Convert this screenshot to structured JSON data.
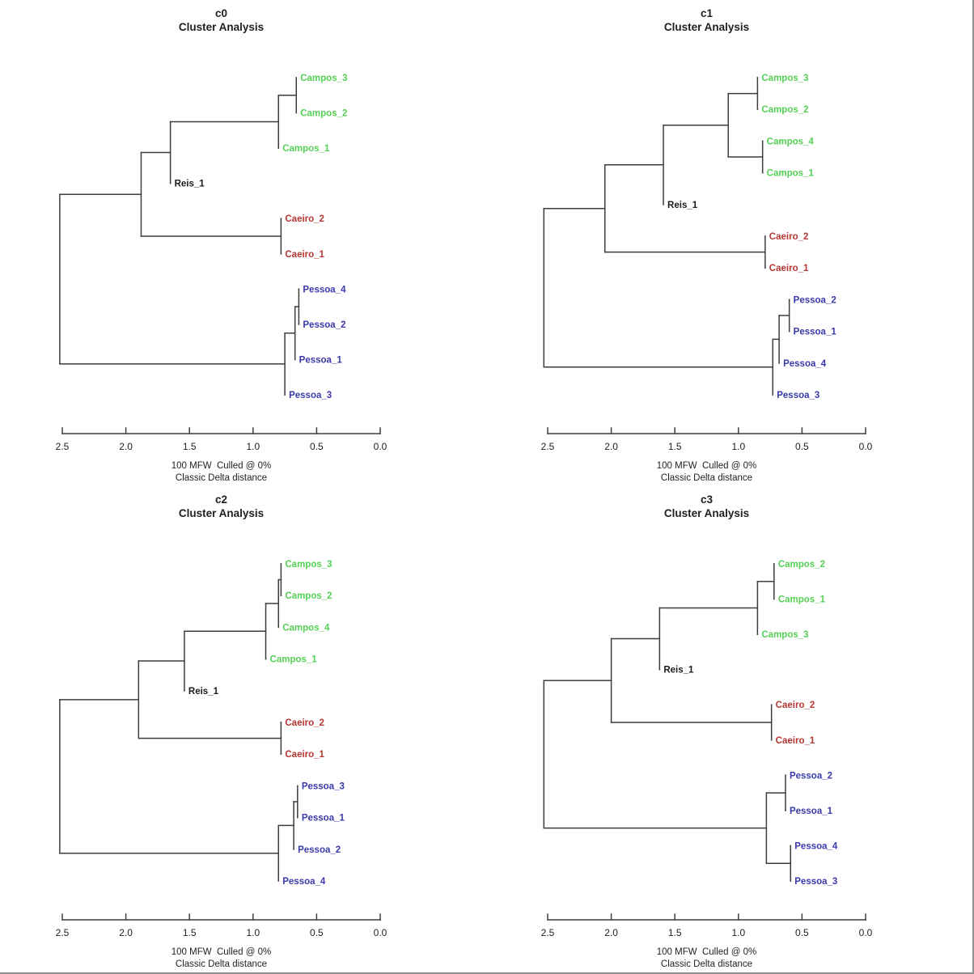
{
  "figure": {
    "description": "2x2 grid of stylometric cluster analysis dendrograms (horizontal, root at left)",
    "background": "#ffffff",
    "frame_color": "#8f8f8f"
  },
  "colors": {
    "branch": "#3d3d3d",
    "text": "#1f1f1f",
    "groups": {
      "Campos": "#55d055",
      "Caeiro": "#b63731",
      "Pessoa": "#3939ab",
      "Reis": "#1a1a1a"
    }
  },
  "axis": {
    "range": [
      2.5,
      0.0
    ],
    "ticks": [
      2.5,
      2.0,
      1.5,
      1.0,
      0.5,
      0.0
    ],
    "tick_labels": [
      "2.5",
      "2.0",
      "1.5",
      "1.0",
      "0.5",
      "0.0"
    ]
  },
  "chart_data": [
    {
      "type": "dendrogram",
      "panel": "c0",
      "title": "c0",
      "subtitle": "Cluster Analysis",
      "xlabel_lines": [
        "100 MFW  Culled @ 0%",
        "Classic Delta distance"
      ],
      "orientation": "root-left-leaves-right",
      "axis_range": [
        2.5,
        0.0
      ],
      "leaves_top_to_bottom": [
        "Campos_3",
        "Campos_2",
        "Campos_1",
        "Reis_1",
        "Caeiro_2",
        "Caeiro_1",
        "Pessoa_4",
        "Pessoa_2",
        "Pessoa_1",
        "Pessoa_3"
      ],
      "tree": {
        "h": 2.52,
        "c": [
          {
            "h": 1.88,
            "c": [
              {
                "h": 1.65,
                "c": [
                  {
                    "h": 0.8,
                    "c": [
                      {
                        "h": 0.66,
                        "c": [
                          {
                            "leaf": "Campos_3"
                          },
                          {
                            "leaf": "Campos_2"
                          }
                        ]
                      },
                      {
                        "leaf": "Campos_1"
                      }
                    ]
                  },
                  {
                    "leaf": "Reis_1"
                  }
                ]
              },
              {
                "h": 0.78,
                "c": [
                  {
                    "leaf": "Caeiro_2"
                  },
                  {
                    "leaf": "Caeiro_1"
                  }
                ]
              }
            ]
          },
          {
            "h": 0.75,
            "c": [
              {
                "h": 0.67,
                "c": [
                  {
                    "h": 0.64,
                    "c": [
                      {
                        "leaf": "Pessoa_4"
                      },
                      {
                        "leaf": "Pessoa_2"
                      }
                    ]
                  },
                  {
                    "leaf": "Pessoa_1"
                  }
                ]
              },
              {
                "leaf": "Pessoa_3"
              }
            ]
          }
        ]
      }
    },
    {
      "type": "dendrogram",
      "panel": "c1",
      "title": "c1",
      "subtitle": "Cluster Analysis",
      "xlabel_lines": [
        "100 MFW  Culled @ 0%",
        "Classic Delta distance"
      ],
      "orientation": "root-left-leaves-right",
      "axis_range": [
        2.5,
        0.0
      ],
      "leaves_top_to_bottom": [
        "Campos_3",
        "Campos_2",
        "Campos_4",
        "Campos_1",
        "Reis_1",
        "Caeiro_2",
        "Caeiro_1",
        "Pessoa_2",
        "Pessoa_1",
        "Pessoa_4",
        "Pessoa_3"
      ],
      "tree": {
        "h": 2.53,
        "c": [
          {
            "h": 2.05,
            "c": [
              {
                "h": 1.59,
                "c": [
                  {
                    "h": 1.08,
                    "c": [
                      {
                        "h": 0.85,
                        "c": [
                          {
                            "leaf": "Campos_3"
                          },
                          {
                            "leaf": "Campos_2"
                          }
                        ]
                      },
                      {
                        "h": 0.81,
                        "c": [
                          {
                            "leaf": "Campos_4"
                          },
                          {
                            "leaf": "Campos_1"
                          }
                        ]
                      }
                    ]
                  },
                  {
                    "leaf": "Reis_1"
                  }
                ]
              },
              {
                "h": 0.79,
                "c": [
                  {
                    "leaf": "Caeiro_2"
                  },
                  {
                    "leaf": "Caeiro_1"
                  }
                ]
              }
            ]
          },
          {
            "h": 0.73,
            "c": [
              {
                "h": 0.68,
                "c": [
                  {
                    "h": 0.6,
                    "c": [
                      {
                        "leaf": "Pessoa_2"
                      },
                      {
                        "leaf": "Pessoa_1"
                      }
                    ]
                  },
                  {
                    "leaf": "Pessoa_4"
                  }
                ]
              },
              {
                "leaf": "Pessoa_3"
              }
            ]
          }
        ]
      }
    },
    {
      "type": "dendrogram",
      "panel": "c2",
      "title": "c2",
      "subtitle": "Cluster Analysis",
      "xlabel_lines": [
        "100 MFW  Culled @ 0%",
        "Classic Delta distance"
      ],
      "orientation": "root-left-leaves-right",
      "axis_range": [
        2.5,
        0.0
      ],
      "leaves_top_to_bottom": [
        "Campos_3",
        "Campos_2",
        "Campos_4",
        "Campos_1",
        "Reis_1",
        "Caeiro_2",
        "Caeiro_1",
        "Pessoa_3",
        "Pessoa_1",
        "Pessoa_2",
        "Pessoa_4"
      ],
      "tree": {
        "h": 2.52,
        "c": [
          {
            "h": 1.9,
            "c": [
              {
                "h": 1.54,
                "c": [
                  {
                    "h": 0.9,
                    "c": [
                      {
                        "h": 0.8,
                        "c": [
                          {
                            "h": 0.78,
                            "c": [
                              {
                                "leaf": "Campos_3"
                              },
                              {
                                "leaf": "Campos_2"
                              }
                            ]
                          },
                          {
                            "leaf": "Campos_4"
                          }
                        ]
                      },
                      {
                        "leaf": "Campos_1"
                      }
                    ]
                  },
                  {
                    "leaf": "Reis_1"
                  }
                ]
              },
              {
                "h": 0.78,
                "c": [
                  {
                    "leaf": "Caeiro_2"
                  },
                  {
                    "leaf": "Caeiro_1"
                  }
                ]
              }
            ]
          },
          {
            "h": 0.8,
            "c": [
              {
                "h": 0.68,
                "c": [
                  {
                    "h": 0.65,
                    "c": [
                      {
                        "leaf": "Pessoa_3"
                      },
                      {
                        "leaf": "Pessoa_1"
                      }
                    ]
                  },
                  {
                    "leaf": "Pessoa_2"
                  }
                ]
              },
              {
                "leaf": "Pessoa_4"
              }
            ]
          }
        ]
      }
    },
    {
      "type": "dendrogram",
      "panel": "c3",
      "title": "c3",
      "subtitle": "Cluster Analysis",
      "xlabel_lines": [
        "100 MFW  Culled @ 0%",
        "Classic Delta distance"
      ],
      "orientation": "root-left-leaves-right",
      "axis_range": [
        2.5,
        0.0
      ],
      "leaves_top_to_bottom": [
        "Campos_2",
        "Campos_1",
        "Campos_3",
        "Reis_1",
        "Caeiro_2",
        "Caeiro_1",
        "Pessoa_2",
        "Pessoa_1",
        "Pessoa_4",
        "Pessoa_3"
      ],
      "tree": {
        "h": 2.53,
        "c": [
          {
            "h": 2.0,
            "c": [
              {
                "h": 1.62,
                "c": [
                  {
                    "h": 0.85,
                    "c": [
                      {
                        "h": 0.72,
                        "c": [
                          {
                            "leaf": "Campos_2"
                          },
                          {
                            "leaf": "Campos_1"
                          }
                        ]
                      },
                      {
                        "leaf": "Campos_3"
                      }
                    ]
                  },
                  {
                    "leaf": "Reis_1"
                  }
                ]
              },
              {
                "h": 0.74,
                "c": [
                  {
                    "leaf": "Caeiro_2"
                  },
                  {
                    "leaf": "Caeiro_1"
                  }
                ]
              }
            ]
          },
          {
            "h": 0.78,
            "c": [
              {
                "h": 0.63,
                "c": [
                  {
                    "leaf": "Pessoa_2"
                  },
                  {
                    "leaf": "Pessoa_1"
                  }
                ]
              },
              {
                "h": 0.59,
                "c": [
                  {
                    "leaf": "Pessoa_4"
                  },
                  {
                    "leaf": "Pessoa_3"
                  }
                ]
              }
            ]
          }
        ]
      }
    }
  ]
}
